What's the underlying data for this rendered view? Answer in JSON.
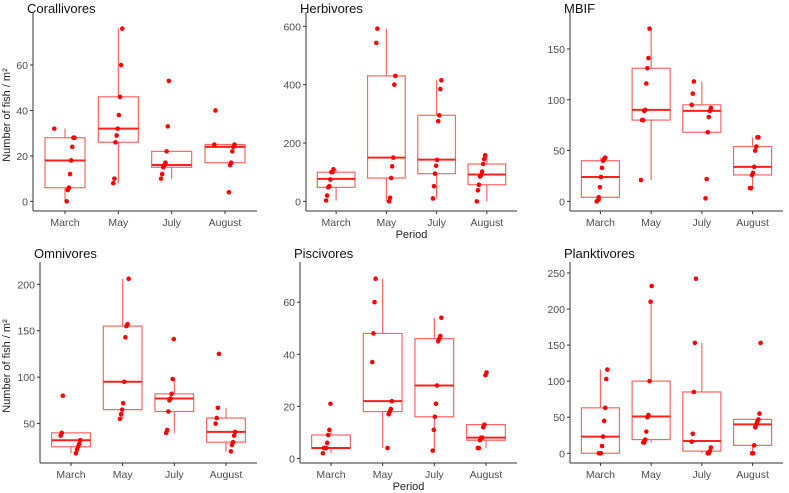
{
  "chart_data": [
    {
      "type": "box",
      "title": "Corallivores",
      "ylabel": "Number of fish / m²",
      "xlabel": "",
      "categories": [
        "March",
        "May",
        "July",
        "August"
      ],
      "yticks": [
        "0",
        "20",
        "40",
        "60"
      ],
      "yticks_values": [
        0,
        20,
        40,
        60
      ],
      "boxes": [
        {
          "lo": 0,
          "q1": 6,
          "med": 18,
          "q3": 28,
          "hi": 32
        },
        {
          "lo": 8,
          "q1": 26,
          "med": 32,
          "q3": 46,
          "hi": 76
        },
        {
          "lo": 10,
          "q1": 15,
          "med": 16,
          "q3": 22,
          "hi": 22
        },
        {
          "lo": 17,
          "q1": 17,
          "med": 24,
          "q3": 25,
          "hi": 25
        }
      ],
      "points": [
        [
          32,
          28,
          28,
          24,
          18,
          12,
          6,
          5,
          0
        ],
        [
          76,
          60,
          46,
          38,
          32,
          29,
          26,
          10,
          8
        ],
        [
          53,
          33,
          22,
          17,
          16,
          15,
          12,
          10
        ],
        [
          40,
          25,
          25,
          24,
          22,
          17,
          16,
          4
        ]
      ]
    },
    {
      "type": "box",
      "title": "Herbivores",
      "ylabel": "",
      "xlabel": "Period",
      "categories": [
        "March",
        "May",
        "July",
        "August"
      ],
      "yticks": [
        "0",
        "200",
        "400",
        "600"
      ],
      "yticks_values": [
        0,
        200,
        400,
        600
      ],
      "boxes": [
        {
          "lo": 3,
          "q1": 48,
          "med": 77,
          "q3": 100,
          "hi": 110
        },
        {
          "lo": 0,
          "q1": 80,
          "med": 150,
          "q3": 430,
          "hi": 592
        },
        {
          "lo": 10,
          "q1": 95,
          "med": 143,
          "q3": 295,
          "hi": 415
        },
        {
          "lo": 0,
          "q1": 57,
          "med": 92,
          "q3": 128,
          "hi": 158
        }
      ],
      "points": [
        [
          110,
          100,
          100,
          75,
          52,
          48,
          20,
          3
        ],
        [
          592,
          543,
          430,
          400,
          150,
          120,
          80,
          12,
          0
        ],
        [
          415,
          385,
          295,
          275,
          142,
          122,
          95,
          52,
          10
        ],
        [
          158,
          145,
          128,
          102,
          90,
          85,
          57,
          38,
          0
        ]
      ]
    },
    {
      "type": "box",
      "title": "MBIF",
      "ylabel": "",
      "xlabel": "",
      "categories": [
        "March",
        "May",
        "July",
        "August"
      ],
      "yticks": [
        "0",
        "50",
        "100",
        "150"
      ],
      "yticks_values": [
        0,
        50,
        100,
        150
      ],
      "boxes": [
        {
          "lo": 0,
          "q1": 4,
          "med": 24,
          "q3": 40,
          "hi": 43
        },
        {
          "lo": 21,
          "q1": 80,
          "med": 90,
          "q3": 131,
          "hi": 170
        },
        {
          "lo": 68,
          "q1": 68,
          "med": 89,
          "q3": 95,
          "hi": 118
        },
        {
          "lo": 13,
          "q1": 26,
          "med": 34,
          "q3": 54,
          "hi": 63
        }
      ],
      "points": [
        [
          43,
          42,
          40,
          33,
          24,
          14,
          4,
          1,
          0
        ],
        [
          170,
          141,
          131,
          116,
          90,
          89,
          80,
          80,
          21
        ],
        [
          118,
          106,
          95,
          92,
          89,
          83,
          68,
          22,
          3
        ],
        [
          63,
          63,
          54,
          50,
          34,
          28,
          26,
          13,
          13
        ]
      ]
    },
    {
      "type": "box",
      "title": "Omnivores",
      "ylabel": "Number of fish / m²",
      "xlabel": "",
      "categories": [
        "March",
        "May",
        "July",
        "August"
      ],
      "yticks": [
        "50",
        "100",
        "150",
        "200"
      ],
      "yticks_values": [
        50,
        100,
        150,
        200
      ],
      "boxes": [
        {
          "lo": 18,
          "q1": 25,
          "med": 32,
          "q3": 40,
          "hi": 40
        },
        {
          "lo": 55,
          "q1": 65,
          "med": 95,
          "q3": 155,
          "hi": 206
        },
        {
          "lo": 40,
          "q1": 63,
          "med": 77,
          "q3": 82,
          "hi": 98
        },
        {
          "lo": 20,
          "q1": 30,
          "med": 41,
          "q3": 56,
          "hi": 67
        }
      ],
      "points": [
        [
          80,
          40,
          37,
          32,
          28,
          25,
          22,
          18
        ],
        [
          206,
          157,
          155,
          143,
          95,
          72,
          65,
          60,
          55
        ],
        [
          141,
          98,
          82,
          77,
          75,
          63,
          43,
          40
        ],
        [
          125,
          67,
          56,
          50,
          41,
          37,
          30,
          27,
          20
        ]
      ]
    },
    {
      "type": "box",
      "title": "Piscivores",
      "ylabel": "",
      "xlabel": "Period",
      "categories": [
        "March",
        "May",
        "July",
        "August"
      ],
      "yticks": [
        "0",
        "20",
        "40",
        "60"
      ],
      "yticks_values": [
        0,
        20,
        40,
        60
      ],
      "boxes": [
        {
          "lo": 2,
          "q1": 4,
          "med": 4,
          "q3": 9,
          "hi": 11
        },
        {
          "lo": 4,
          "q1": 18,
          "med": 22,
          "q3": 48,
          "hi": 69
        },
        {
          "lo": 3,
          "q1": 16,
          "med": 28,
          "q3": 46,
          "hi": 54
        },
        {
          "lo": 4,
          "q1": 7,
          "med": 8,
          "q3": 13,
          "hi": 13
        }
      ],
      "points": [
        [
          21,
          11,
          9,
          6,
          4,
          4,
          4,
          2
        ],
        [
          69,
          60,
          48,
          37,
          22,
          19,
          18,
          17,
          4
        ],
        [
          54,
          47,
          46,
          45,
          28,
          21,
          16,
          11,
          3
        ],
        [
          33,
          32,
          13,
          12,
          8,
          8,
          7,
          4,
          4
        ]
      ]
    },
    {
      "type": "box",
      "title": "Planktivores",
      "ylabel": "",
      "xlabel": "",
      "categories": [
        "March",
        "May",
        "July",
        "August"
      ],
      "yticks": [
        "0",
        "50",
        "100",
        "150",
        "200",
        "250"
      ],
      "yticks_values": [
        0,
        50,
        100,
        150,
        200,
        250
      ],
      "boxes": [
        {
          "lo": 0,
          "q1": 0,
          "med": 23,
          "q3": 63,
          "hi": 116
        },
        {
          "lo": 15,
          "q1": 19,
          "med": 51,
          "q3": 100,
          "hi": 210
        },
        {
          "lo": 0,
          "q1": 3,
          "med": 17,
          "q3": 85,
          "hi": 153
        },
        {
          "lo": 0,
          "q1": 11,
          "med": 40,
          "q3": 47,
          "hi": 47
        }
      ],
      "points": [
        [
          116,
          103,
          63,
          45,
          23,
          10,
          0,
          0,
          0
        ],
        [
          232,
          210,
          100,
          53,
          50,
          30,
          19,
          15,
          15
        ],
        [
          242,
          153,
          85,
          27,
          16,
          8,
          3,
          0,
          0
        ],
        [
          153,
          55,
          47,
          44,
          40,
          36,
          11,
          0,
          0
        ]
      ]
    }
  ],
  "colors": {
    "box": "#ff6666",
    "median": "#ff2020",
    "point": "#ff0000",
    "axis": "#333333"
  }
}
